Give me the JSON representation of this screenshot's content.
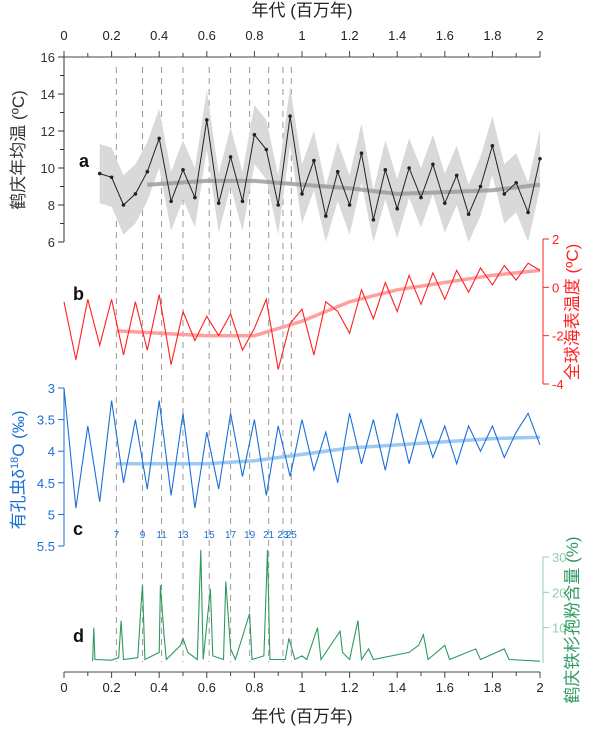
{
  "colors": {
    "temp": "#222222",
    "band": "#d9d9d9",
    "trend_a": "#999999",
    "sst": "#ff2020",
    "sst_trend": "#ffa0a0",
    "d18o": "#1a6fd8",
    "d18o_trend": "#9ccaf2",
    "pollen": "#2e9a60",
    "pollen_axis": "#8fd0ac",
    "dash": "#999999"
  },
  "chart_data": {
    "type": "line",
    "x_axis": {
      "title": "年代 (百万年)",
      "range": [
        0,
        2
      ],
      "ticks": [
        "0",
        "0.2",
        "0.4",
        "0.6",
        "0.8",
        "1",
        "1.2",
        "1.4",
        "1.6",
        "1.8",
        "2"
      ],
      "positions": [
        "top",
        "bottom"
      ]
    },
    "mis_lines": {
      "x": [
        0.22,
        0.33,
        0.41,
        0.5,
        0.61,
        0.7,
        0.78,
        0.86,
        0.92,
        0.955
      ],
      "labels": [
        "7",
        "9",
        "11",
        "13",
        "15",
        "17",
        "19",
        "21",
        "23",
        "25"
      ]
    },
    "panels": [
      {
        "letter": "a",
        "ylabel": "鹤庆年均温 (ºC)",
        "ylim": [
          6,
          16
        ],
        "ticks": [
          "6",
          "8",
          "10",
          "12",
          "14",
          "16"
        ],
        "axis_side": "left",
        "x": [
          0.15,
          0.2,
          0.25,
          0.3,
          0.35,
          0.4,
          0.45,
          0.5,
          0.55,
          0.6,
          0.65,
          0.7,
          0.75,
          0.8,
          0.85,
          0.9,
          0.95,
          1.0,
          1.05,
          1.1,
          1.15,
          1.2,
          1.25,
          1.3,
          1.35,
          1.4,
          1.45,
          1.5,
          1.55,
          1.6,
          1.65,
          1.7,
          1.75,
          1.8,
          1.85,
          1.9,
          1.95,
          2.0
        ],
        "y": [
          9.7,
          9.5,
          8.0,
          8.6,
          9.8,
          11.6,
          8.2,
          9.9,
          8.4,
          12.6,
          8.1,
          10.6,
          8.2,
          11.8,
          11.0,
          8.0,
          12.8,
          8.6,
          10.4,
          7.4,
          9.8,
          8.0,
          10.8,
          7.2,
          9.9,
          7.8,
          10.0,
          8.4,
          10.2,
          8.1,
          9.6,
          7.5,
          9.0,
          11.2,
          8.6,
          9.2,
          7.6,
          10.5
        ],
        "uncertainty": 1.6,
        "trend": {
          "x": [
            0.35,
            0.6,
            0.8,
            1.0,
            1.2,
            1.4,
            1.6,
            1.8,
            2.0
          ],
          "y": [
            9.1,
            9.3,
            9.3,
            9.1,
            8.9,
            8.6,
            8.7,
            8.8,
            9.1
          ]
        }
      },
      {
        "letter": "b",
        "ylabel": "全球海表温度 (ºC)",
        "ylim": [
          -4,
          2
        ],
        "ticks": [
          "-4",
          "-2",
          "0",
          "2"
        ],
        "axis_side": "right",
        "x_start": 0,
        "x_step": 0.05,
        "y": [
          -0.6,
          -3.0,
          -0.5,
          -2.4,
          -0.5,
          -2.8,
          -0.6,
          -2.6,
          -0.3,
          -3.2,
          -1.0,
          -2.2,
          -1.2,
          -2.0,
          -1.1,
          -2.6,
          -1.7,
          -0.5,
          -3.4,
          -1.5,
          -0.9,
          -2.8,
          -0.6,
          -1.0,
          -1.9,
          -0.1,
          -1.3,
          0.2,
          -1.0,
          0.5,
          -0.7,
          0.6,
          -0.5,
          0.7,
          -0.2,
          0.8,
          0.1,
          0.9,
          0.3,
          1.0,
          0.7
        ],
        "trend": {
          "x": [
            0.22,
            0.4,
            0.6,
            0.8,
            1.0,
            1.2,
            1.4,
            1.6,
            1.8,
            2.0
          ],
          "y": [
            -1.8,
            -1.9,
            -2.0,
            -2.0,
            -1.4,
            -0.6,
            -0.1,
            0.2,
            0.5,
            0.7
          ]
        }
      },
      {
        "letter": "c",
        "ylabel_pre": "有孔虫δ",
        "ylabel_sup": "18",
        "ylabel_post": "O (‰)",
        "ylim": [
          3,
          5.5
        ],
        "inverted": true,
        "ticks": [
          "3",
          "3.5",
          "4",
          "4.5",
          "5",
          "5.5"
        ],
        "axis_side": "left",
        "x_start": 0,
        "x_step": 0.05,
        "y": [
          3.0,
          4.9,
          3.6,
          4.8,
          3.2,
          4.5,
          3.5,
          4.6,
          3.2,
          4.7,
          3.4,
          4.9,
          3.7,
          4.6,
          3.4,
          4.4,
          3.5,
          4.7,
          3.6,
          4.4,
          3.5,
          4.3,
          3.7,
          4.5,
          3.4,
          4.2,
          3.5,
          4.3,
          3.4,
          4.2,
          3.5,
          4.1,
          3.6,
          4.2,
          3.6,
          4.0,
          3.6,
          4.1,
          3.7,
          3.4,
          3.9
        ],
        "trend": {
          "x": [
            0.22,
            0.4,
            0.6,
            0.8,
            1.0,
            1.2,
            1.4,
            1.6,
            1.8,
            2.0
          ],
          "y": [
            4.2,
            4.2,
            4.2,
            4.15,
            4.05,
            3.95,
            3.9,
            3.85,
            3.8,
            3.78
          ]
        }
      },
      {
        "letter": "d",
        "ylabel": "鹤庆铁杉孢粉含量 (%)",
        "ylim": [
          0,
          30
        ],
        "ticks": [
          "10",
          "20",
          "30"
        ],
        "axis_side": "right",
        "points": [
          [
            0.12,
            0.5
          ],
          [
            0.125,
            10
          ],
          [
            0.13,
            1
          ],
          [
            0.2,
            0.8
          ],
          [
            0.23,
            1.5
          ],
          [
            0.24,
            12
          ],
          [
            0.25,
            1
          ],
          [
            0.31,
            1.5
          ],
          [
            0.325,
            18
          ],
          [
            0.33,
            22
          ],
          [
            0.34,
            1
          ],
          [
            0.4,
            3
          ],
          [
            0.405,
            22
          ],
          [
            0.42,
            8
          ],
          [
            0.43,
            1
          ],
          [
            0.49,
            5
          ],
          [
            0.5,
            7
          ],
          [
            0.52,
            3
          ],
          [
            0.56,
            1
          ],
          [
            0.575,
            32
          ],
          [
            0.585,
            1
          ],
          [
            0.615,
            21
          ],
          [
            0.625,
            2
          ],
          [
            0.67,
            1
          ],
          [
            0.68,
            23
          ],
          [
            0.7,
            4
          ],
          [
            0.72,
            1
          ],
          [
            0.78,
            14
          ],
          [
            0.79,
            1
          ],
          [
            0.84,
            2
          ],
          [
            0.855,
            32
          ],
          [
            0.865,
            1
          ],
          [
            0.93,
            1
          ],
          [
            0.945,
            7
          ],
          [
            0.97,
            1
          ],
          [
            1.0,
            2
          ],
          [
            1.02,
            1
          ],
          [
            1.065,
            10
          ],
          [
            1.08,
            1
          ],
          [
            1.16,
            9
          ],
          [
            1.17,
            3
          ],
          [
            1.2,
            1
          ],
          [
            1.235,
            12
          ],
          [
            1.25,
            1
          ],
          [
            1.28,
            4
          ],
          [
            1.3,
            1
          ],
          [
            1.45,
            3
          ],
          [
            1.49,
            5
          ],
          [
            1.51,
            8
          ],
          [
            1.53,
            1
          ],
          [
            1.6,
            5
          ],
          [
            1.62,
            1
          ],
          [
            1.73,
            4
          ],
          [
            1.75,
            1
          ],
          [
            1.85,
            4
          ],
          [
            1.87,
            1
          ],
          [
            2.0,
            0.5
          ]
        ]
      }
    ]
  }
}
